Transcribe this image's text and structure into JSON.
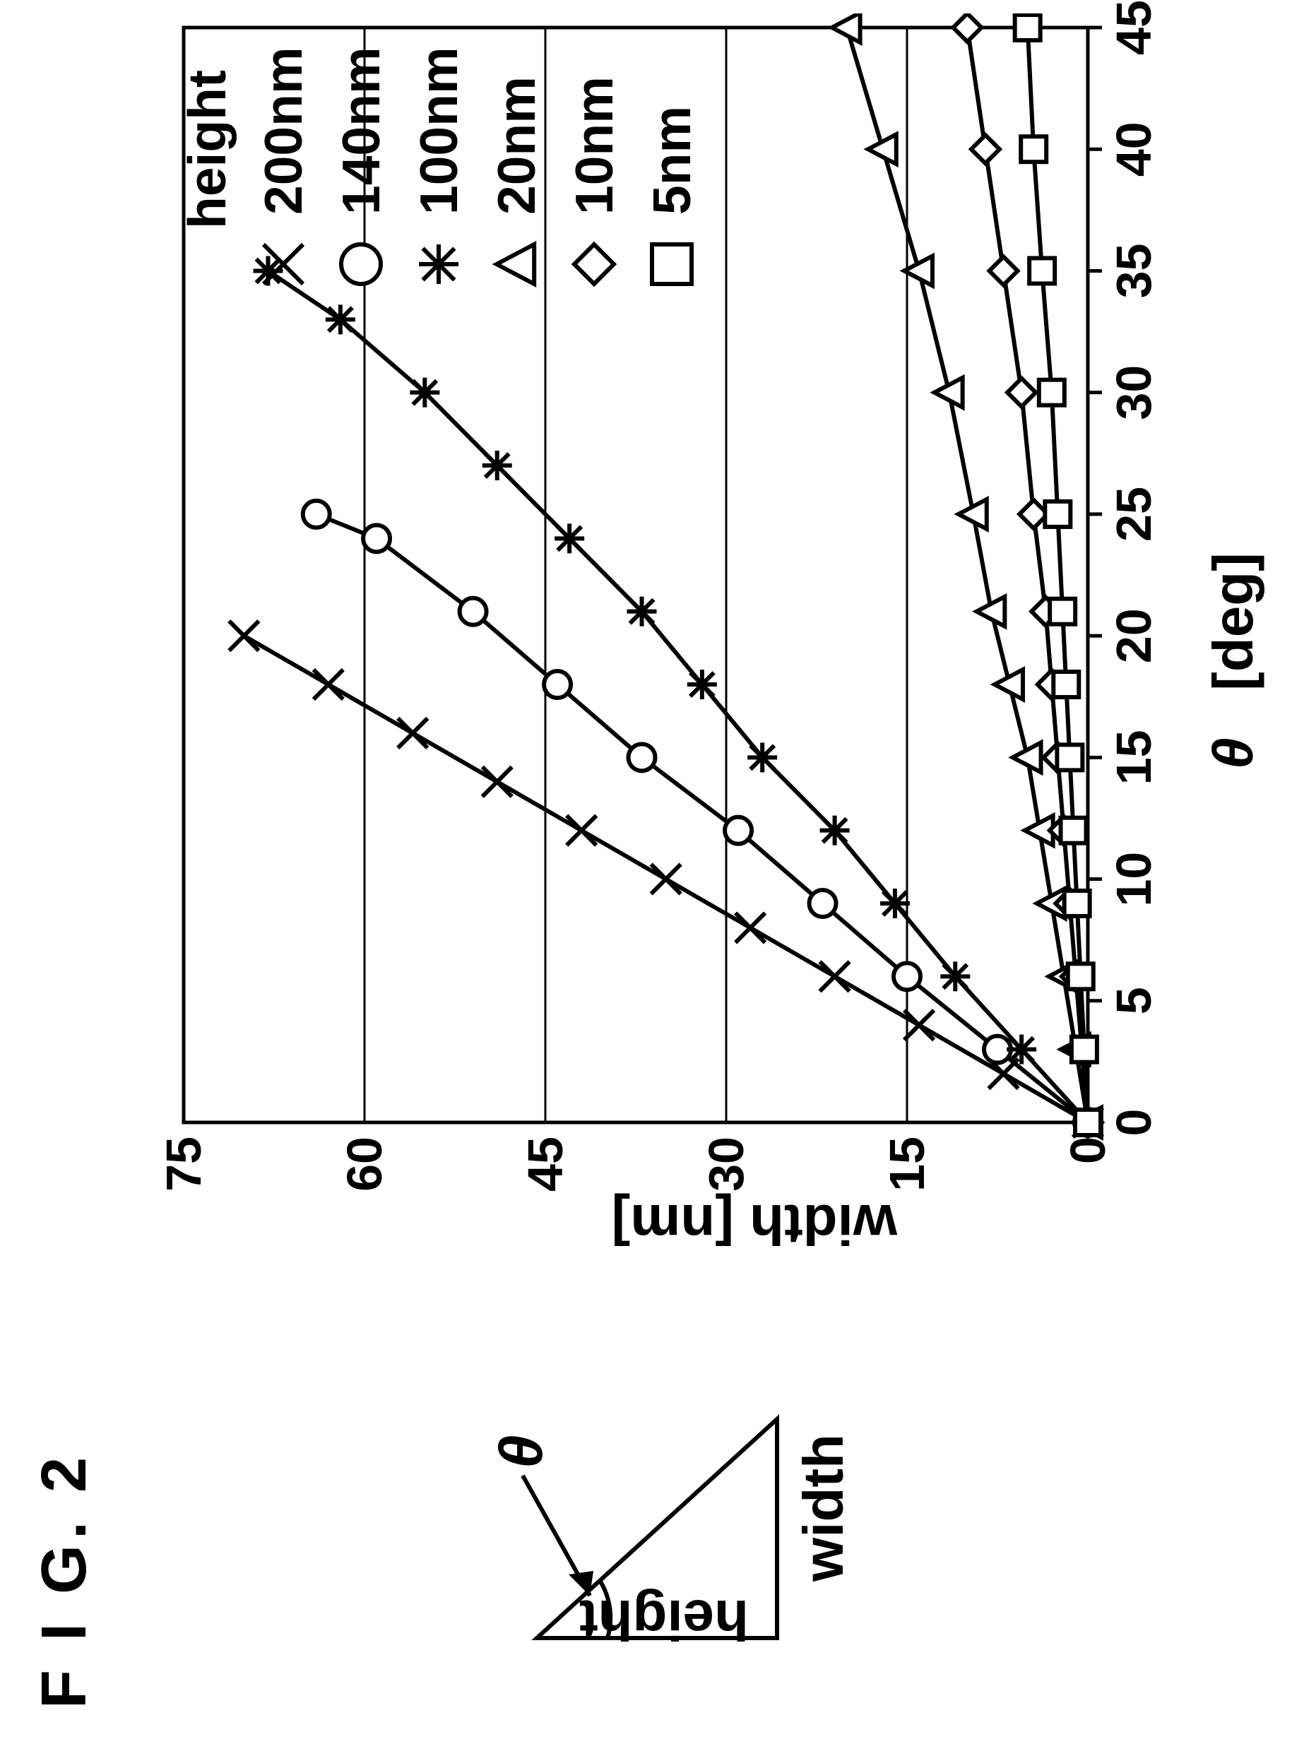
{
  "figure": {
    "title": "F I G. 2",
    "background_color": "#ffffff",
    "text_color": "#000000",
    "title_fontsize": 90,
    "axis_label_fontsize": 80,
    "tick_fontsize": 70,
    "legend_fontsize": 75,
    "font_family": "Helvetica, Arial, sans-serif",
    "font_weight": 700
  },
  "triangle": {
    "height_label": "height",
    "width_label": "width",
    "theta_label": "θ",
    "stroke_color": "#000000",
    "stroke_width": 6
  },
  "chart": {
    "type": "line",
    "xlabel": "θ  [deg]",
    "ylabel": "width [nm]",
    "xlim": [
      0,
      45
    ],
    "ylim": [
      0,
      75
    ],
    "xtick_step": 5,
    "ytick_step": 15,
    "xticks": [
      0,
      5,
      10,
      15,
      20,
      25,
      30,
      35,
      40,
      45
    ],
    "yticks": [
      0,
      15,
      30,
      45,
      60,
      75
    ],
    "grid": {
      "horizontal": true,
      "vertical": false,
      "color": "#000000",
      "width": 3
    },
    "axis_color": "#000000",
    "axis_width": 5,
    "line_color": "#000000",
    "line_width": 6,
    "marker_stroke": "#000000",
    "marker_fill": "#ffffff",
    "marker_stroke_width": 6,
    "plot_background": "#ffffff",
    "series": [
      {
        "name": "200nm",
        "marker": "x",
        "marker_size": 42,
        "x": [
          0,
          2,
          4,
          6,
          8,
          10,
          12,
          14,
          16,
          18,
          20
        ],
        "y": [
          0,
          7,
          14,
          21,
          28,
          35,
          42,
          49,
          56,
          63,
          70
        ]
      },
      {
        "name": "140nm",
        "marker": "circle",
        "marker_size": 38,
        "x": [
          0,
          3,
          6,
          9,
          12,
          15,
          18,
          21,
          24,
          25
        ],
        "y": [
          0,
          7.5,
          15,
          22,
          29,
          37,
          44,
          51,
          59,
          64
        ]
      },
      {
        "name": "100nm",
        "marker": "asterisk",
        "marker_size": 42,
        "x": [
          0,
          3,
          6,
          9,
          12,
          15,
          18,
          21,
          24,
          27,
          30,
          33,
          35
        ],
        "y": [
          0,
          5.5,
          11,
          16,
          21,
          27,
          32,
          37,
          43,
          49,
          55,
          62,
          68
        ]
      },
      {
        "name": "20nm",
        "marker": "triangle",
        "marker_size": 42,
        "x": [
          0,
          3,
          6,
          9,
          12,
          15,
          18,
          21,
          25,
          30,
          35,
          40,
          45
        ],
        "y": [
          0,
          1,
          2,
          3,
          4,
          5,
          6.5,
          8,
          9.5,
          11.5,
          14,
          17,
          20
        ]
      },
      {
        "name": "10nm",
        "marker": "diamond",
        "marker_size": 40,
        "x": [
          0,
          3,
          6,
          9,
          12,
          15,
          18,
          21,
          25,
          30,
          35,
          40,
          45
        ],
        "y": [
          0,
          0.5,
          1,
          1.5,
          2,
          2.5,
          3,
          3.5,
          4.5,
          5.5,
          7,
          8.5,
          10
        ]
      },
      {
        "name": "5nm",
        "marker": "square",
        "marker_size": 36,
        "x": [
          0,
          3,
          6,
          9,
          12,
          15,
          18,
          21,
          25,
          30,
          35,
          40,
          45
        ],
        "y": [
          0,
          0.3,
          0.6,
          0.9,
          1.2,
          1.5,
          1.8,
          2.1,
          2.5,
          3,
          3.8,
          4.5,
          5
        ]
      }
    ]
  },
  "legend": {
    "header": "height",
    "items": [
      {
        "marker": "x",
        "label": "200nm"
      },
      {
        "marker": "circle",
        "label": "140nm"
      },
      {
        "marker": "asterisk",
        "label": "100nm"
      },
      {
        "marker": "triangle",
        "label": "20nm"
      },
      {
        "marker": "diamond",
        "label": "10nm"
      },
      {
        "marker": "square",
        "label": "5nm"
      }
    ]
  }
}
